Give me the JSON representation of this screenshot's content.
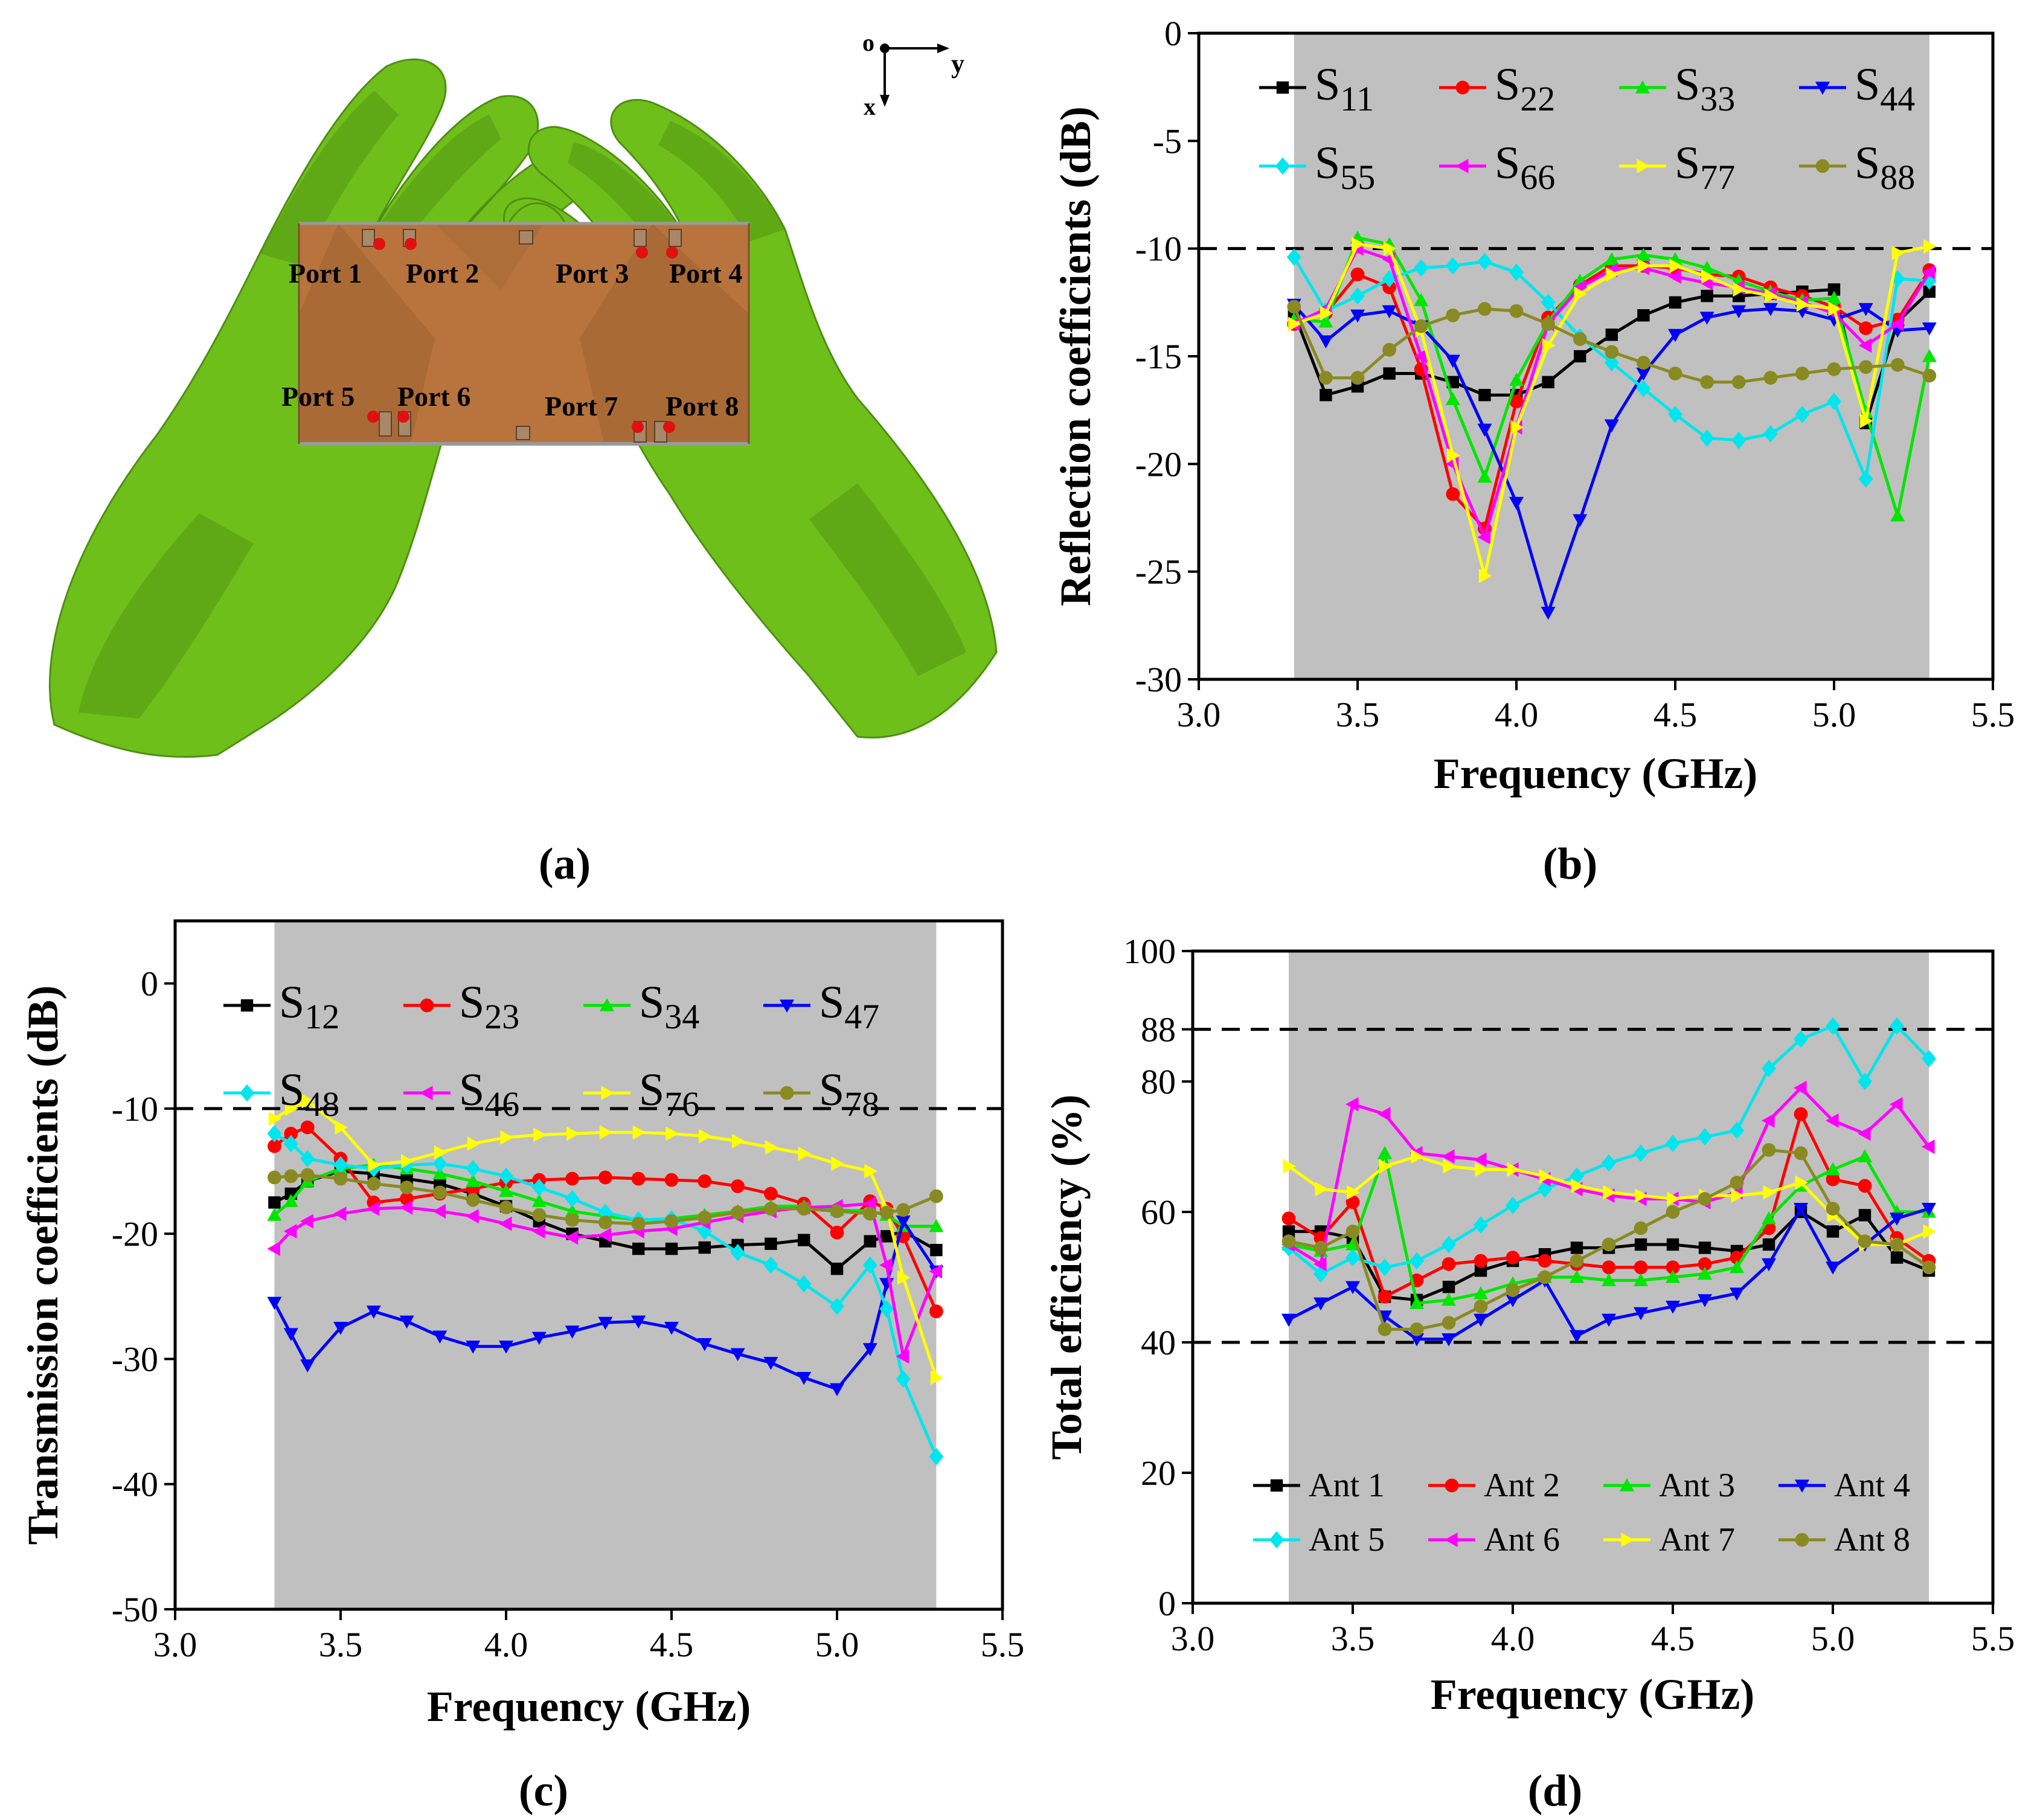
{
  "panel_a": {
    "caption": "(a)",
    "axis_labels": {
      "origin": "o",
      "y": "y",
      "x": "x"
    },
    "ports": [
      "Port 1",
      "Port 2",
      "Port 3",
      "Port 4",
      "Port 5",
      "Port 6",
      "Port 7",
      "Port 8"
    ],
    "colors": {
      "hand": "#6fbf1a",
      "hand_dark": "#4e8f12",
      "board": "#b8743c",
      "board_dark": "#8f5a2a",
      "port": "#e01010"
    }
  },
  "chart_data": [
    {
      "id": "b",
      "caption": "(b)",
      "type": "line",
      "xlabel": "Frequency (GHz)",
      "ylabel": "Reflection coefficients (dB)",
      "xlim": [
        3.0,
        5.5
      ],
      "ylim": [
        -30,
        0
      ],
      "xticks": [
        3.0,
        3.5,
        4.0,
        4.5,
        5.0,
        5.5
      ],
      "xtick_labels": [
        "3.0",
        "3.5",
        "4.0",
        "4.5",
        "5.0",
        "5.5"
      ],
      "yticks": [
        -30,
        -25,
        -20,
        -15,
        -10,
        -5,
        0
      ],
      "ytick_labels": [
        "-30",
        "-25",
        "-20",
        "-15",
        "-10",
        "-5",
        "0"
      ],
      "shaded_x": [
        3.3,
        5.3
      ],
      "hlines": [
        -10
      ],
      "legend_cols": 4,
      "x": [
        3.3,
        3.4,
        3.5,
        3.6,
        3.7,
        3.8,
        3.9,
        4.0,
        4.1,
        4.2,
        4.3,
        4.4,
        4.5,
        4.6,
        4.7,
        4.8,
        4.9,
        5.0,
        5.1,
        5.2,
        5.3
      ],
      "series": [
        {
          "base": "S",
          "sub": "11",
          "color": "#000000",
          "marker": "square",
          "values": [
            -13,
            -16.8,
            -16.4,
            -15.8,
            -15.8,
            -16.2,
            -16.8,
            -16.8,
            -16.2,
            -15,
            -14,
            -13.1,
            -12.5,
            -12.2,
            -12.2,
            -12.1,
            -12,
            -11.9,
            -18.1,
            -13.4,
            -12
          ]
        },
        {
          "base": "S",
          "sub": "22",
          "color": "#ff0000",
          "marker": "circle",
          "values": [
            -13.5,
            -13,
            -11.2,
            -11.8,
            -15.6,
            -21.4,
            -23,
            -17.1,
            -13.2,
            -11.7,
            -10.8,
            -10.8,
            -10.9,
            -11.2,
            -11.3,
            -11.8,
            -12.2,
            -12.7,
            -13.7,
            -13.3,
            -11
          ]
        },
        {
          "base": "S",
          "sub": "33",
          "color": "#00e600",
          "marker": "triangle",
          "values": [
            -13.3,
            -13.4,
            -9.5,
            -9.8,
            -12.4,
            -17,
            -20.6,
            -16.1,
            -13.4,
            -11.5,
            -10.5,
            -10.3,
            -10.5,
            -10.9,
            -11.5,
            -12,
            -12.4,
            -12.3,
            -17.6,
            -22.4,
            -15
          ]
        },
        {
          "base": "S",
          "sub": "44",
          "color": "#0000ff",
          "marker": "triangle-down",
          "values": [
            -12.6,
            -14.3,
            -13.1,
            -12.9,
            -13.6,
            -15.2,
            -18.4,
            -21.8,
            -26.9,
            -22.6,
            -18.2,
            -15.8,
            -14,
            -13.2,
            -12.9,
            -12.8,
            -12.9,
            -13.3,
            -12.8,
            -13.8,
            -13.7
          ]
        },
        {
          "base": "S",
          "sub": "55",
          "color": "#00e5ee",
          "marker": "diamond",
          "values": [
            -10.4,
            -12.9,
            -12.2,
            -11.4,
            -10.9,
            -10.8,
            -10.6,
            -11.1,
            -12.5,
            -14.1,
            -15.3,
            -16.5,
            -17.7,
            -18.8,
            -18.9,
            -18.6,
            -17.7,
            -17.1,
            -20.7,
            -11.4,
            -11.5
          ]
        },
        {
          "base": "S",
          "sub": "66",
          "color": "#ff00ff",
          "marker": "triangle-left",
          "values": [
            -13.5,
            -12.8,
            -10,
            -10.5,
            -15,
            -20,
            -23.4,
            -18.3,
            -13.5,
            -11.8,
            -11,
            -10.9,
            -11.3,
            -11.6,
            -11.8,
            -12.1,
            -12.5,
            -13,
            -14.5,
            -13.5,
            -11.1
          ]
        },
        {
          "base": "S",
          "sub": "77",
          "color": "#ffff00",
          "marker": "triangle-right",
          "values": [
            -13.5,
            -13,
            -9.8,
            -10,
            -13.8,
            -19.6,
            -25.2,
            -18.3,
            -14.5,
            -12.1,
            -11.2,
            -10.8,
            -10.8,
            -11.3,
            -11.9,
            -12.2,
            -12.6,
            -12.8,
            -18,
            -10.2,
            -9.9
          ]
        },
        {
          "base": "S",
          "sub": "88",
          "color": "#8a8a22",
          "marker": "circle",
          "values": [
            -12.7,
            -16,
            -16,
            -14.7,
            -13.6,
            -13.1,
            -12.8,
            -12.9,
            -13.5,
            -14.2,
            -14.8,
            -15.3,
            -15.8,
            -16.2,
            -16.2,
            -16,
            -15.8,
            -15.6,
            -15.5,
            -15.4,
            -15.9
          ]
        }
      ]
    },
    {
      "id": "c",
      "caption": "(c)",
      "type": "line",
      "xlabel": "Frequency (GHz)",
      "ylabel": "Transmission coefficients (dB)",
      "xlim": [
        3.0,
        5.5
      ],
      "ylim": [
        -50,
        5
      ],
      "xticks": [
        3.0,
        3.5,
        4.0,
        4.5,
        5.0,
        5.5
      ],
      "xtick_labels": [
        "3.0",
        "3.5",
        "4.0",
        "4.5",
        "5.0",
        "5.5"
      ],
      "yticks": [
        -50,
        -40,
        -30,
        -20,
        -10,
        0
      ],
      "ytick_labels": [
        "-50",
        "-40",
        "-30",
        "-20",
        "-10",
        "0"
      ],
      "shaded_x": [
        3.3,
        5.3
      ],
      "hlines": [
        -10
      ],
      "legend_cols": 4,
      "x": [
        3.3,
        3.35,
        3.4,
        3.5,
        3.6,
        3.7,
        3.8,
        3.9,
        4.0,
        4.1,
        4.2,
        4.3,
        4.4,
        4.5,
        4.6,
        4.7,
        4.8,
        4.9,
        5.0,
        5.1,
        5.15,
        5.2,
        5.3
      ],
      "series": [
        {
          "base": "S",
          "sub": "12",
          "color": "#000000",
          "marker": "square",
          "values": [
            -17.5,
            -16.8,
            -15.8,
            -15,
            -15.2,
            -15.6,
            -16,
            -16.8,
            -17.8,
            -19,
            -20,
            -20.6,
            -21.2,
            -21.2,
            -21.1,
            -20.9,
            -20.8,
            -20.5,
            -22.8,
            -20.6,
            -20.2,
            -19.8,
            -21.3
          ]
        },
        {
          "base": "S",
          "sub": "23",
          "color": "#ff0000",
          "marker": "circle",
          "values": [
            -13,
            -12,
            -11.5,
            -14,
            -17.5,
            -17.2,
            -16.8,
            -16.4,
            -15.9,
            -15.7,
            -15.6,
            -15.5,
            -15.6,
            -15.7,
            -15.8,
            -16.2,
            -16.8,
            -17.6,
            -19.9,
            -17.4,
            -18,
            -20.2,
            -26.2
          ]
        },
        {
          "base": "S",
          "sub": "34",
          "color": "#00e600",
          "marker": "triangle",
          "values": [
            -18.5,
            -17.4,
            -15.8,
            -14.8,
            -14.5,
            -14.8,
            -15.2,
            -15.8,
            -16.6,
            -17.4,
            -18.2,
            -18.6,
            -18.9,
            -18.8,
            -18.5,
            -18.2,
            -17.8,
            -17.8,
            -18.1,
            -18.2,
            -18.5,
            -19.4,
            -19.4
          ]
        },
        {
          "base": "S",
          "sub": "47",
          "color": "#0000ff",
          "marker": "triangle-down",
          "values": [
            -25.5,
            -28,
            -30.5,
            -27.5,
            -26.2,
            -27,
            -28.2,
            -29,
            -29,
            -28.3,
            -27.8,
            -27.1,
            -27,
            -27.5,
            -28.8,
            -29.6,
            -30.3,
            -31.5,
            -32.4,
            -29.2,
            -24,
            -19,
            -23
          ]
        },
        {
          "base": "S",
          "sub": "48",
          "color": "#00e5ee",
          "marker": "diamond",
          "values": [
            -12,
            -12.8,
            -14,
            -14.5,
            -14.8,
            -14.5,
            -14.4,
            -14.8,
            -15.4,
            -16.3,
            -17.2,
            -18.3,
            -18.9,
            -18.8,
            -19.8,
            -21.5,
            -22.5,
            -24,
            -25.8,
            -22.5,
            -26,
            -31.6,
            -37.8
          ]
        },
        {
          "base": "S",
          "sub": "46",
          "color": "#ff00ff",
          "marker": "triangle-left",
          "values": [
            -21.2,
            -19.8,
            -19,
            -18.4,
            -18,
            -17.9,
            -18.2,
            -18.6,
            -19.2,
            -19.8,
            -20.3,
            -20.1,
            -19.8,
            -19.6,
            -19.1,
            -18.6,
            -18.2,
            -17.9,
            -17.8,
            -17.6,
            -22.5,
            -29.8,
            -23
          ]
        },
        {
          "base": "S",
          "sub": "76",
          "color": "#ffff00",
          "marker": "triangle-right",
          "values": [
            -10.8,
            -10,
            -9.4,
            -11.5,
            -14.5,
            -14.2,
            -13.5,
            -12.8,
            -12.3,
            -12.1,
            -12,
            -11.9,
            -11.9,
            -12,
            -12.2,
            -12.6,
            -13.1,
            -13.6,
            -14.4,
            -15,
            -18,
            -23.5,
            -31.5
          ]
        },
        {
          "base": "S",
          "sub": "78",
          "color": "#8a8a22",
          "marker": "circle",
          "values": [
            -15.5,
            -15.4,
            -15.3,
            -15.6,
            -16,
            -16.3,
            -16.7,
            -17.3,
            -17.9,
            -18.5,
            -18.9,
            -19.1,
            -19.2,
            -19,
            -18.7,
            -18.3,
            -18,
            -18,
            -18.2,
            -18.4,
            -18.3,
            -18.1,
            -17
          ]
        }
      ]
    },
    {
      "id": "d",
      "caption": "(d)",
      "type": "line",
      "xlabel": "Frequency (GHz)",
      "ylabel": "Total efficiency (%)",
      "xlim": [
        3.0,
        5.5
      ],
      "ylim": [
        0,
        100
      ],
      "xticks": [
        3.0,
        3.5,
        4.0,
        4.5,
        5.0,
        5.5
      ],
      "xtick_labels": [
        "3.0",
        "3.5",
        "4.0",
        "4.5",
        "5.0",
        "5.5"
      ],
      "yticks": [
        0,
        20,
        40,
        60,
        80,
        88,
        100
      ],
      "ytick_labels": [
        "0",
        "20",
        "40",
        "60",
        "80",
        "88",
        "100"
      ],
      "shaded_x": [
        3.3,
        5.3
      ],
      "hlines": [
        88,
        40
      ],
      "legend_cols": 4,
      "x": [
        3.3,
        3.4,
        3.5,
        3.6,
        3.7,
        3.8,
        3.9,
        4.0,
        4.1,
        4.2,
        4.3,
        4.4,
        4.5,
        4.6,
        4.7,
        4.8,
        4.9,
        5.0,
        5.1,
        5.2,
        5.3
      ],
      "series": [
        {
          "name": "Ant 1",
          "color": "#000000",
          "marker": "square",
          "values": [
            57,
            57,
            56,
            47,
            46.5,
            48.5,
            51,
            52.5,
            53.5,
            54.5,
            54.5,
            55,
            55,
            54.5,
            54,
            55,
            60,
            57,
            59.5,
            53,
            51
          ]
        },
        {
          "name": "Ant 2",
          "color": "#ff0000",
          "marker": "circle",
          "values": [
            59,
            56,
            61.5,
            47,
            49.5,
            52,
            52.5,
            53,
            52.5,
            52,
            51.5,
            51.5,
            51.5,
            52,
            53,
            57.5,
            75,
            65,
            64,
            56,
            52.5
          ]
        },
        {
          "name": "Ant 3",
          "color": "#00e600",
          "marker": "triangle",
          "values": [
            55,
            54,
            55,
            69,
            46,
            46.5,
            47.5,
            49,
            50,
            50,
            49.5,
            49.5,
            50,
            50.5,
            51.5,
            59,
            64,
            66.5,
            68.5,
            60,
            60
          ]
        },
        {
          "name": "Ant 4",
          "color": "#0000ff",
          "marker": "triangle-down",
          "values": [
            43.5,
            46,
            48.5,
            44,
            40.5,
            40.5,
            43.5,
            46.5,
            49.5,
            41,
            43.5,
            44.5,
            45.5,
            46.5,
            47.5,
            52,
            60.5,
            51.5,
            55,
            59,
            60.5
          ]
        },
        {
          "name": "Ant 5",
          "color": "#00e5ee",
          "marker": "diamond",
          "values": [
            54.5,
            50.5,
            53,
            51.5,
            52.5,
            55,
            58,
            61,
            63.5,
            65.5,
            67.5,
            69,
            70.5,
            71.5,
            72.5,
            82,
            86.5,
            88.5,
            80,
            88.5,
            83.5
          ]
        },
        {
          "name": "Ant 6",
          "color": "#ff00ff",
          "marker": "triangle-left",
          "values": [
            55,
            52,
            76.5,
            75,
            69,
            68.5,
            68,
            66.5,
            65,
            63.5,
            62.5,
            62,
            62,
            61.5,
            63,
            74,
            79,
            74,
            72,
            76.5,
            70
          ]
        },
        {
          "name": "Ant 7",
          "color": "#ffff00",
          "marker": "triangle-right",
          "values": [
            67,
            63.5,
            63,
            67,
            68.5,
            67,
            66.5,
            66.5,
            65.5,
            64,
            63,
            62.5,
            62,
            62.5,
            62.5,
            63,
            64.5,
            59.5,
            55,
            55,
            57
          ]
        },
        {
          "name": "Ant 8",
          "color": "#8a8a22",
          "marker": "circle",
          "values": [
            55.5,
            54.5,
            57,
            42,
            42,
            43,
            45.5,
            48,
            50,
            52.5,
            55,
            57.5,
            60,
            62,
            64.5,
            69.5,
            69,
            60.5,
            55.5,
            55,
            51.5
          ]
        }
      ]
    }
  ]
}
